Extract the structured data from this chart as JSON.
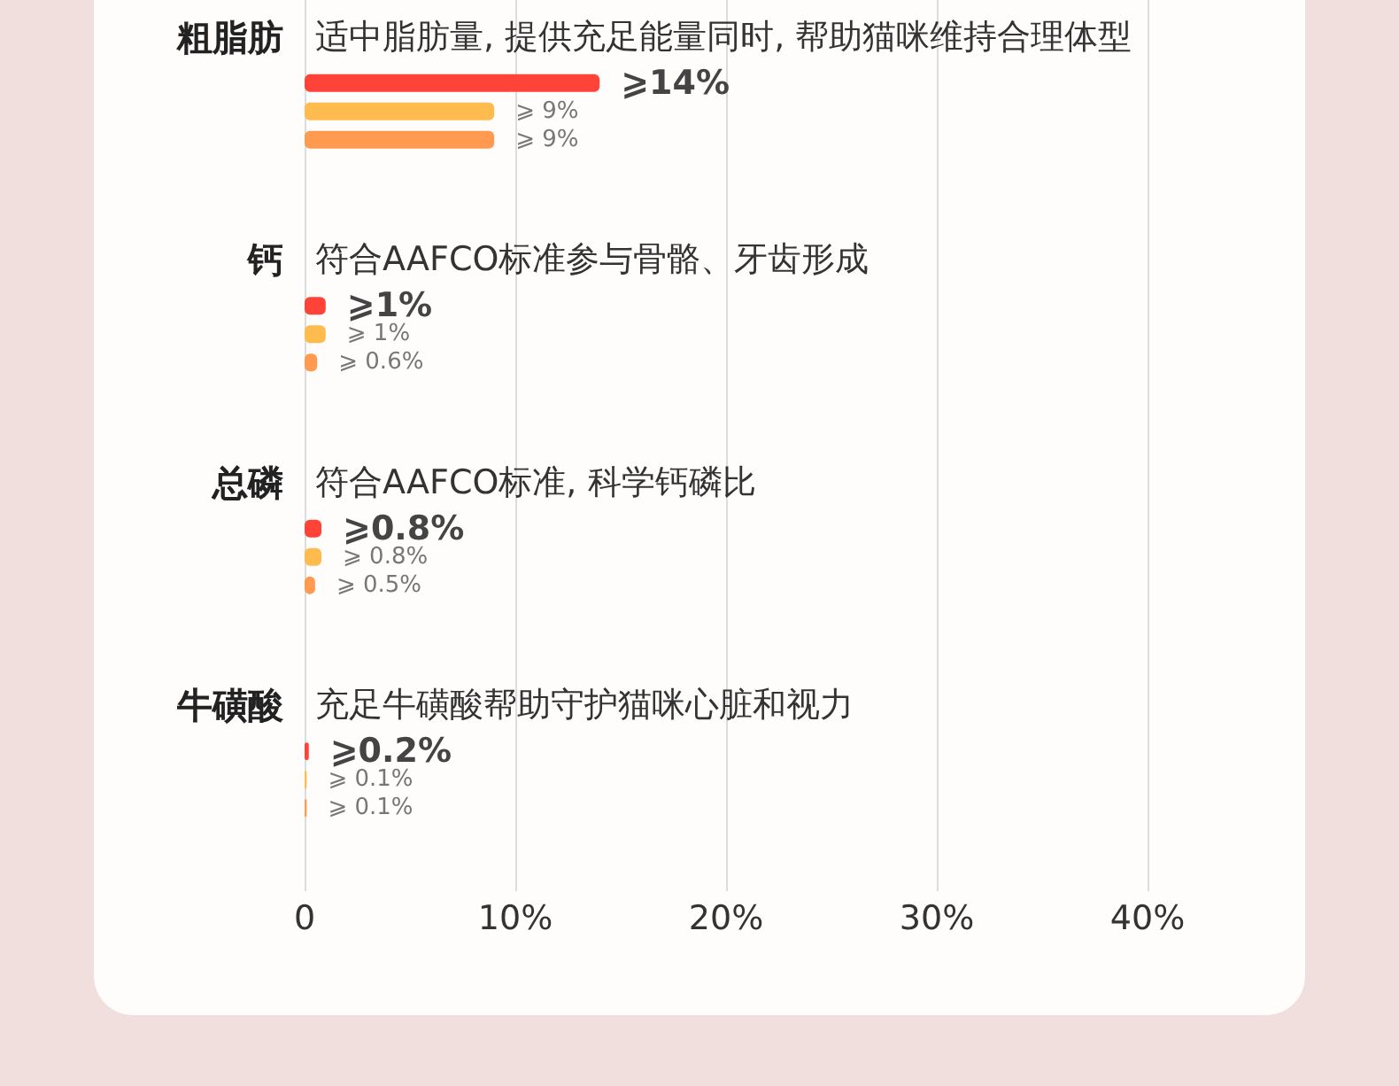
{
  "chart_data": {
    "type": "bar",
    "orientation": "horizontal",
    "categories": [
      "粗脂肪",
      "钙",
      "总磷",
      "牛磺酸"
    ],
    "series": [
      {
        "color": "#ff4338",
        "values": [
          14,
          1,
          0.8,
          0.2
        ],
        "value_labels": [
          "⩾14%",
          "⩾1%",
          "⩾0.8%",
          "⩾0.2%"
        ]
      },
      {
        "color": "#ffbb4d",
        "values": [
          9,
          1,
          0.8,
          0.1
        ],
        "value_labels": [
          "⩾ 9%",
          "⩾ 1%",
          "⩾ 0.8%",
          "⩾ 0.1%"
        ]
      },
      {
        "color": "#ff9a50",
        "values": [
          9,
          0.6,
          0.5,
          0.1
        ],
        "value_labels": [
          "⩾ 9%",
          "⩾ 0.6%",
          "⩾ 0.5%",
          "⩾ 0.1%"
        ]
      }
    ],
    "xlim": [
      0,
      40
    ],
    "xticks": [
      0,
      {
        "value": 10,
        "label": "10%"
      },
      {
        "value": 20,
        "label": "20%"
      },
      {
        "value": 30,
        "label": "30%"
      },
      {
        "value": 40,
        "label": "40%"
      }
    ],
    "grid": "x",
    "annotations": [
      "适中脂肪量, 提供充足能量同时, 帮助猫咪维持合理体型",
      "符合AAFCO标准参与骨骼、牙齿形成",
      "符合AAFCO标准, 科学钙磷比",
      "充足牛磺酸帮助守护猫咪心脏和视力"
    ]
  }
}
